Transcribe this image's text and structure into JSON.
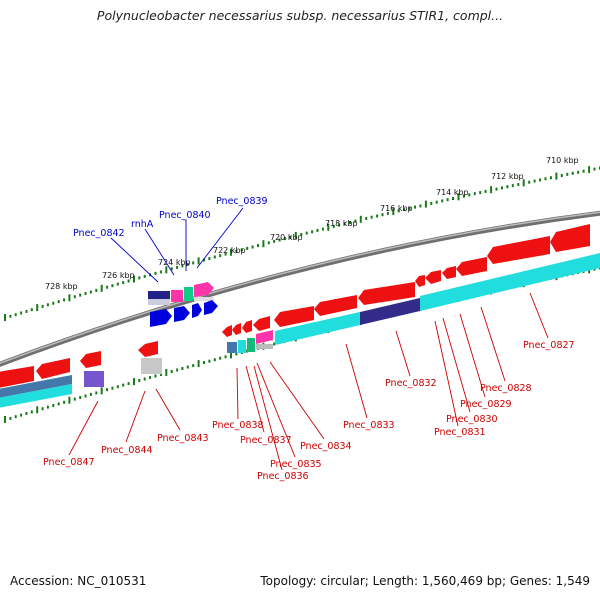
{
  "title": "Polynucleobacter necessarius subsp. necessarius STIR1, compl...",
  "footer": {
    "accession": "Accession: NC_010531",
    "summary": "Topology: circular; Length: 1,560,469 bp; Genes: 1,549"
  },
  "colors": {
    "forward_label": "#0000cc",
    "reverse_label": "#cc0000",
    "backbone": "#777777",
    "tick": "#1a7a1a",
    "red_gene": "#ee0000",
    "cyan_gene": "#22dddd",
    "blue_gene": "#0000dd",
    "navy_gene": "#222288",
    "pink_gene": "#ff33aa",
    "green_gene": "#11cc88",
    "gray_gene": "#bbbbbb",
    "purple_gene": "#7755cc"
  },
  "scale_labels": [
    "710 kbp",
    "712 kbp",
    "714 kbp",
    "716 kbp",
    "718 kbp",
    "720 kbp",
    "722 kbp",
    "724 kbp",
    "726 kbp",
    "728 kbp"
  ],
  "forward_labels": [
    "Pnec_0842",
    "rnhA",
    "Pnec_0840",
    "Pnec_0839"
  ],
  "reverse_labels": [
    "Pnec_0847",
    "Pnec_0844",
    "Pnec_0843",
    "Pnec_0838",
    "Pnec_0837",
    "Pnec_0835",
    "Pnec_0836",
    "Pnec_0834",
    "Pnec_0833",
    "Pnec_0832",
    "Pnec_0831",
    "Pnec_0830",
    "Pnec_0829",
    "Pnec_0828",
    "Pnec_0827"
  ]
}
